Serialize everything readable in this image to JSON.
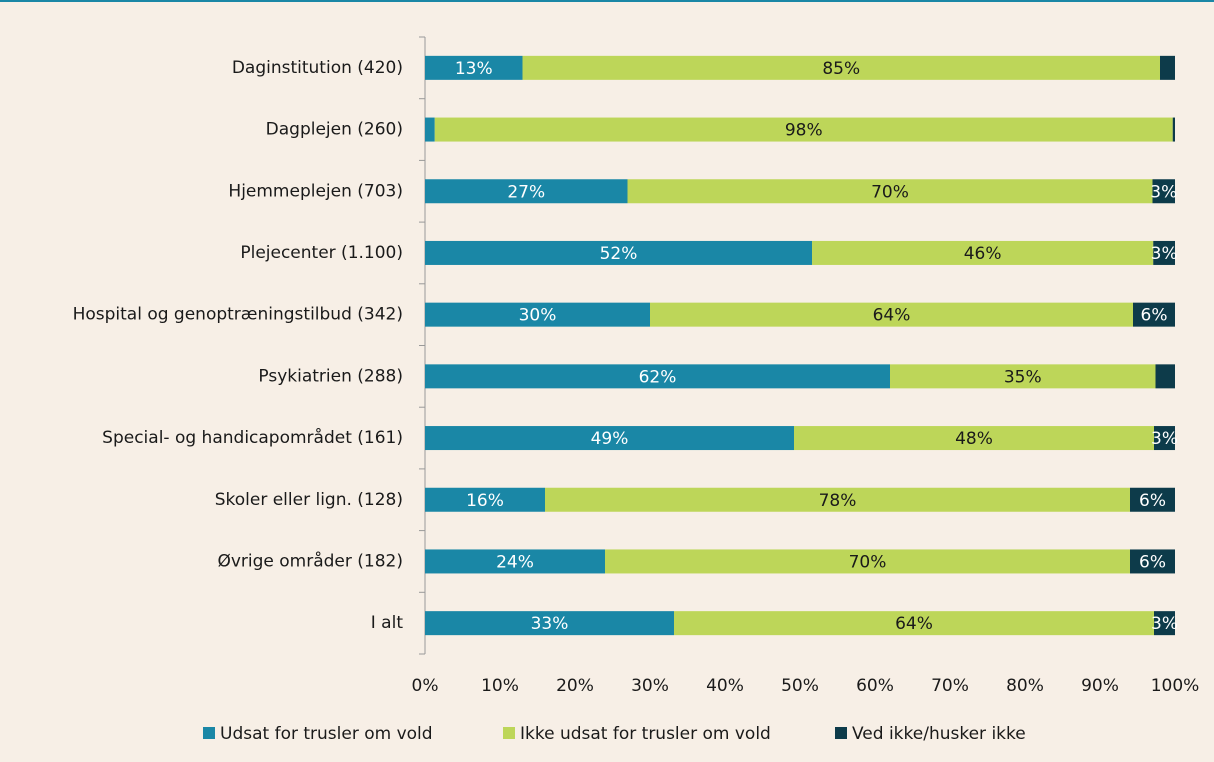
{
  "chart_data": {
    "type": "stacked_barh",
    "categories": [
      "Daginstitution (420)",
      "Dagplejen (260)",
      "Hjemmeplejen (703)",
      "Plejecenter (1.100)",
      "Hospital og genoptræningstilbud (342)",
      "Psykiatrien (288)",
      "Special- og handicapområdet (161)",
      "Skoler eller lign. (128)",
      "Øvrige områder (182)",
      "I alt"
    ],
    "series": [
      {
        "name": "Udsat for trusler om vold",
        "color": "#1a87a6",
        "label_color": "#ffffff",
        "values": [
          13,
          1.3,
          27,
          51.6,
          30,
          62,
          49.2,
          16,
          24,
          33.2
        ],
        "value_labels": [
          "13%",
          null,
          "27%",
          "52%",
          "30%",
          "62%",
          "49%",
          "16%",
          "24%",
          "33%"
        ]
      },
      {
        "name": "Ikke udsat for trusler om vold",
        "color": "#bdd659",
        "label_color": "#1a1a1a",
        "values": [
          85,
          98.4,
          70,
          45.5,
          64.4,
          35.4,
          48,
          78,
          70,
          64
        ],
        "value_labels": [
          "85%",
          "98%",
          "70%",
          "46%",
          "64%",
          "35%",
          "48%",
          "78%",
          "70%",
          "64%"
        ]
      },
      {
        "name": "Ved ikke/husker ikke",
        "color": "#0d3b4a",
        "label_color": "#ffffff",
        "values": [
          2,
          0.3,
          3,
          2.9,
          5.6,
          2.6,
          2.8,
          6,
          6,
          2.8
        ],
        "value_labels": [
          null,
          null,
          "3%",
          "3%",
          "6%",
          null,
          "3%",
          "6%",
          "6%",
          "3%"
        ]
      }
    ],
    "xlim": [
      0,
      100
    ],
    "xticks": [
      {
        "value": 0,
        "label": "0%"
      },
      {
        "value": 10,
        "label": "10%"
      },
      {
        "value": 20,
        "label": "20%"
      },
      {
        "value": 30,
        "label": "30%"
      },
      {
        "value": 40,
        "label": "40%"
      },
      {
        "value": 50,
        "label": "50%"
      },
      {
        "value": 60,
        "label": "60%"
      },
      {
        "value": 70,
        "label": "70%"
      },
      {
        "value": 80,
        "label": "80%"
      },
      {
        "value": 90,
        "label": "90%"
      },
      {
        "value": 100,
        "label": "100%"
      }
    ],
    "legend": "bottom"
  }
}
